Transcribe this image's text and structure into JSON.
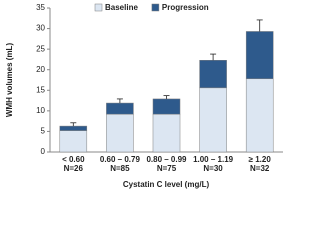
{
  "chart_data": {
    "type": "stacked-bar",
    "categories": [
      "< 0.60",
      "0.60 – 0.79",
      "0.80 – 0.99",
      "1.00 – 1.19",
      "≥ 1.20"
    ],
    "sample_sizes": [
      "N=26",
      "N=85",
      "N=75",
      "N=30",
      "N=32"
    ],
    "series": [
      {
        "name": "Baseline",
        "color": "#dce6f2",
        "values": [
          5.2,
          9.2,
          9.2,
          15.6,
          17.8
        ]
      },
      {
        "name": "Progression",
        "color": "#2e5a8c",
        "values": [
          1.1,
          2.7,
          3.7,
          6.7,
          11.5
        ],
        "errors": [
          0.8,
          1.0,
          0.8,
          1.5,
          2.8
        ]
      }
    ],
    "ylim": [
      0,
      35
    ],
    "yticks": [
      0,
      5,
      10,
      15,
      20,
      25,
      30,
      35
    ],
    "y_label": "WMH volumes (mL)",
    "x_label": "Cystatin C level (mg/L)"
  }
}
